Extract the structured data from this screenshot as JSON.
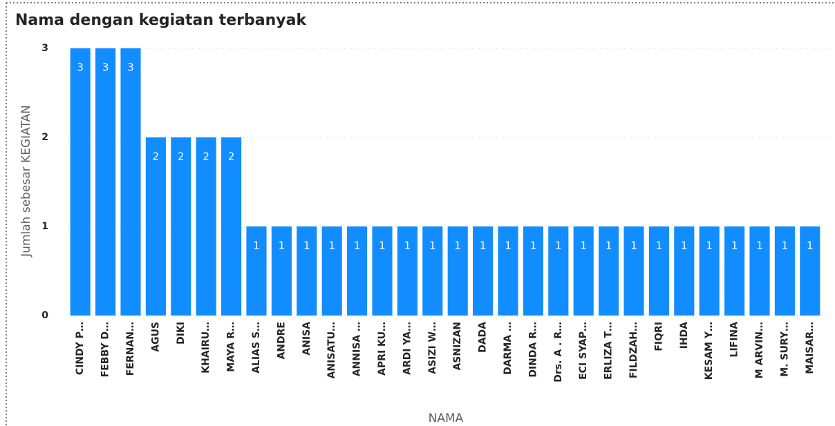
{
  "chart_data": {
    "type": "bar",
    "title": "Nama dengan kegiatan terbanyak",
    "x_label": "NAMA",
    "y_label": "Jumlah sebesar KEGIATAN",
    "categories": [
      "CINDY P…",
      "FEBBY D…",
      "FERNAN…",
      "AGUS",
      "DIKI",
      "KHAIRU…",
      "MAYA R…",
      "ALIAS S…",
      "ANDRE",
      "ANISA",
      "ANISATU…",
      "ANNISA …",
      "APRI KU…",
      "ARDI YA…",
      "ASIZI W…",
      "ASNIZAN",
      "DADA",
      "DARMA …",
      "DINDA R…",
      "Drs. A . R…",
      "ECI SYAP…",
      "ERLIZA T…",
      "FILDZAH…",
      "FIQRI",
      "IHDA",
      "KESAM Y…",
      "LIFINA",
      "M ARVIN…",
      "M. SURY…",
      "MAISAR…"
    ],
    "values": [
      3,
      3,
      3,
      2,
      2,
      2,
      2,
      1,
      1,
      1,
      1,
      1,
      1,
      1,
      1,
      1,
      1,
      1,
      1,
      1,
      1,
      1,
      1,
      1,
      1,
      1,
      1,
      1,
      1,
      1
    ],
    "color": "#118dff",
    "ylim": [
      0,
      3
    ],
    "yticks": [
      0,
      1,
      2,
      3
    ],
    "grid": true
  }
}
